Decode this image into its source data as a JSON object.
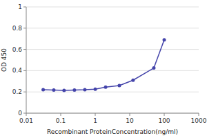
{
  "chart_data": {
    "type": "line",
    "x": [
      0.031,
      0.063,
      0.125,
      0.25,
      0.5,
      1.0,
      2.0,
      5.0,
      12.5,
      50.0,
      100.0
    ],
    "series": [
      {
        "color": "#4444aa",
        "marker": "circle",
        "values": [
          0.22,
          0.218,
          0.215,
          0.218,
          0.22,
          0.225,
          0.245,
          0.26,
          0.31,
          0.425,
          0.69
        ]
      }
    ],
    "xlim": [
      0.01,
      1000
    ],
    "ylim": [
      0,
      1
    ],
    "xticks": [
      0.01,
      0.1,
      1,
      10,
      100,
      1000
    ],
    "yticks": [
      0,
      0.2,
      0.4,
      0.6,
      0.8,
      1
    ],
    "xlabel": "Recombinant ProteinConcentration(ng/ml)",
    "ylabel": "OD 450",
    "log": "x",
    "grid": true
  }
}
